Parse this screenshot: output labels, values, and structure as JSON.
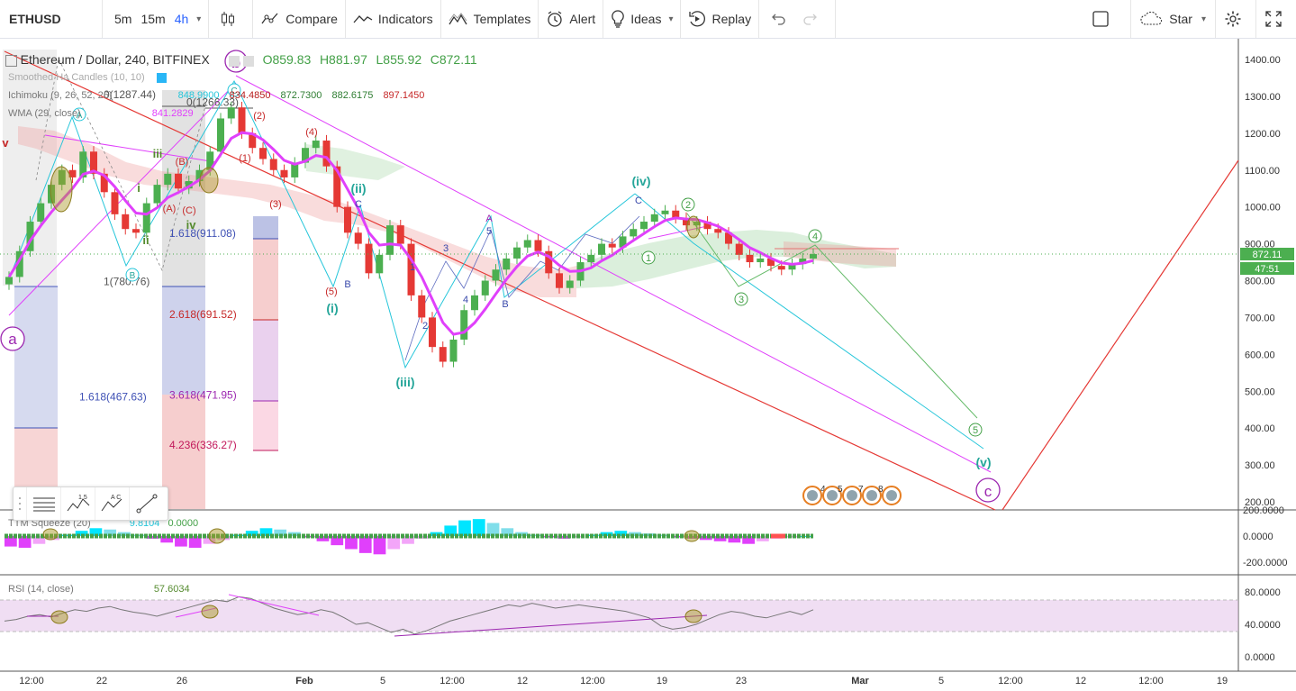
{
  "toolbar": {
    "symbol": "ETHUSD",
    "intervals": [
      "5m",
      "15m",
      "4h"
    ],
    "active_interval": "4h",
    "compare": "Compare",
    "indicators": "Indicators",
    "templates": "Templates",
    "alert": "Alert",
    "ideas": "Ideas",
    "replay": "Replay",
    "star": "Star"
  },
  "legend": {
    "title": "Ethereum / Dollar, 240, BITFINEX",
    "open": "O859.83",
    "high": "H881.97",
    "low": "L855.92",
    "close": "C872.11",
    "smoothed": "Smoothed Ha Candles (10, 10)",
    "ichimoku": "Ichimoku (9, 26, 52, 26)",
    "ichimoku_values": [
      "848.9900",
      "834.4850",
      "872.7300",
      "882.6175",
      "897.1450"
    ],
    "wma": "WMA (29, close)",
    "wma_value": "841.2829",
    "ttm": "TTM Squeeze (20)",
    "ttm_values": [
      "9.8104",
      "0.0000"
    ],
    "rsi": "RSI (14, close)",
    "rsi_value": "57.6034"
  },
  "colors": {
    "up": "#4caf50",
    "down": "#e53935",
    "wma": "#e040fb",
    "fib": "#3f51b5",
    "cyan": "#26c6da",
    "elliott_purple": "#9c27b0"
  },
  "chart_data": [
    {
      "type": "candlestick",
      "title": "Ethereum / Dollar, 240, BITFINEX",
      "price_scale": [
        "1400.00",
        "1300.00",
        "1200.00",
        "1100.00",
        "1000.00",
        "900.00",
        "800.00",
        "700.00",
        "600.00",
        "500.00",
        "400.00",
        "300.00",
        "200.00"
      ],
      "ylim": [
        190,
        1430
      ],
      "last_price": "872.11",
      "countdown": "47:51",
      "x_ticks": [
        "12:00",
        "22",
        "26",
        "Feb",
        "5",
        "12:00",
        "12",
        "12:00",
        "19",
        "23",
        "Mar",
        "5",
        "12:00",
        "12",
        "12:00",
        "19"
      ],
      "closes": [
        810,
        880,
        960,
        1010,
        1060,
        1100,
        1080,
        1150,
        1090,
        1040,
        980,
        940,
        930,
        1010,
        1060,
        1090,
        1050,
        1070,
        1100,
        1150,
        1240,
        1270,
        1200,
        1160,
        1130,
        1100,
        1080,
        1120,
        1160,
        1180,
        1110,
        1000,
        930,
        900,
        820,
        870,
        950,
        900,
        760,
        700,
        620,
        580,
        640,
        720,
        760,
        800,
        830,
        860,
        890,
        910,
        880,
        820,
        780,
        800,
        850,
        870,
        900,
        890,
        920,
        940,
        960,
        980,
        990,
        970,
        950,
        960,
        940,
        930,
        900,
        870,
        850,
        860,
        840,
        830,
        845,
        860,
        872
      ],
      "wma_value": 841.28,
      "fib_labels": [
        "0(1287.44)",
        "0(1266.33)",
        "1.618(911.08)",
        "1(780.76)",
        "2.618(691.52)",
        "1.618(467.63)",
        "3.618(471.95)",
        "4.236(336.27)"
      ],
      "fib_label_prices": [
        1287.44,
        1266.33,
        911.08,
        780.76,
        691.52,
        467.63,
        471.95,
        336.27
      ],
      "wave_labels": {
        "large": [
          "a",
          "b",
          "c"
        ],
        "minor": [
          "(i)",
          "(ii)",
          "(iii)",
          "(iv)",
          "(v)",
          "iii",
          "ii",
          "iv",
          "i",
          "v"
        ],
        "green": [
          "1",
          "2",
          "3",
          "4",
          "5"
        ],
        "small": [
          "A",
          "B",
          "C",
          "(A)",
          "(B)",
          "(C)",
          "(1)",
          "(2)",
          "(3)",
          "(4)",
          "(5)",
          "1",
          "2",
          "3",
          "4",
          "5",
          "A",
          "B",
          "C",
          "B",
          "C"
        ]
      },
      "ichimoku_values": [
        848.99,
        834.485,
        872.73,
        882.6175,
        897.145
      ],
      "event_markers": [
        "4",
        "5",
        "7",
        "8"
      ]
    },
    {
      "type": "histogram",
      "title": "TTM Squeeze (20)",
      "y_ticks": [
        "200.0000",
        "0.0000",
        "-200.0000"
      ],
      "values": [
        -80,
        -90,
        -60,
        -30,
        10,
        40,
        60,
        50,
        30,
        10,
        -20,
        -50,
        -80,
        -90,
        -60,
        -30,
        10,
        40,
        60,
        50,
        30,
        -10,
        -40,
        -70,
        -100,
        -130,
        -140,
        -100,
        -60,
        -20,
        30,
        80,
        120,
        130,
        100,
        60,
        30,
        10,
        -10,
        -20,
        -10,
        10,
        30,
        40,
        30,
        20,
        10,
        -10,
        -20,
        -30,
        -40,
        -50,
        -60,
        -40,
        -20,
        -10,
        0
      ],
      "squeeze_dots": "green"
    },
    {
      "type": "line",
      "title": "RSI (14, close)",
      "y_ticks": [
        "80.0000",
        "40.0000",
        "0.0000"
      ],
      "ylim": [
        -5,
        90
      ],
      "band": [
        30,
        70
      ],
      "values": [
        44,
        46,
        50,
        52,
        49,
        54,
        58,
        56,
        60,
        62,
        58,
        55,
        53,
        50,
        54,
        58,
        62,
        66,
        70,
        68,
        74,
        72,
        66,
        60,
        56,
        52,
        54,
        58,
        55,
        48,
        40,
        42,
        36,
        30,
        34,
        28,
        32,
        38,
        44,
        48,
        52,
        56,
        60,
        64,
        62,
        66,
        63,
        60,
        62,
        64,
        62,
        60,
        58,
        56,
        52,
        48,
        38,
        34,
        36,
        40,
        46,
        52,
        56,
        54,
        50,
        48,
        52,
        56,
        52,
        58
      ],
      "value": "57.6034"
    }
  ]
}
